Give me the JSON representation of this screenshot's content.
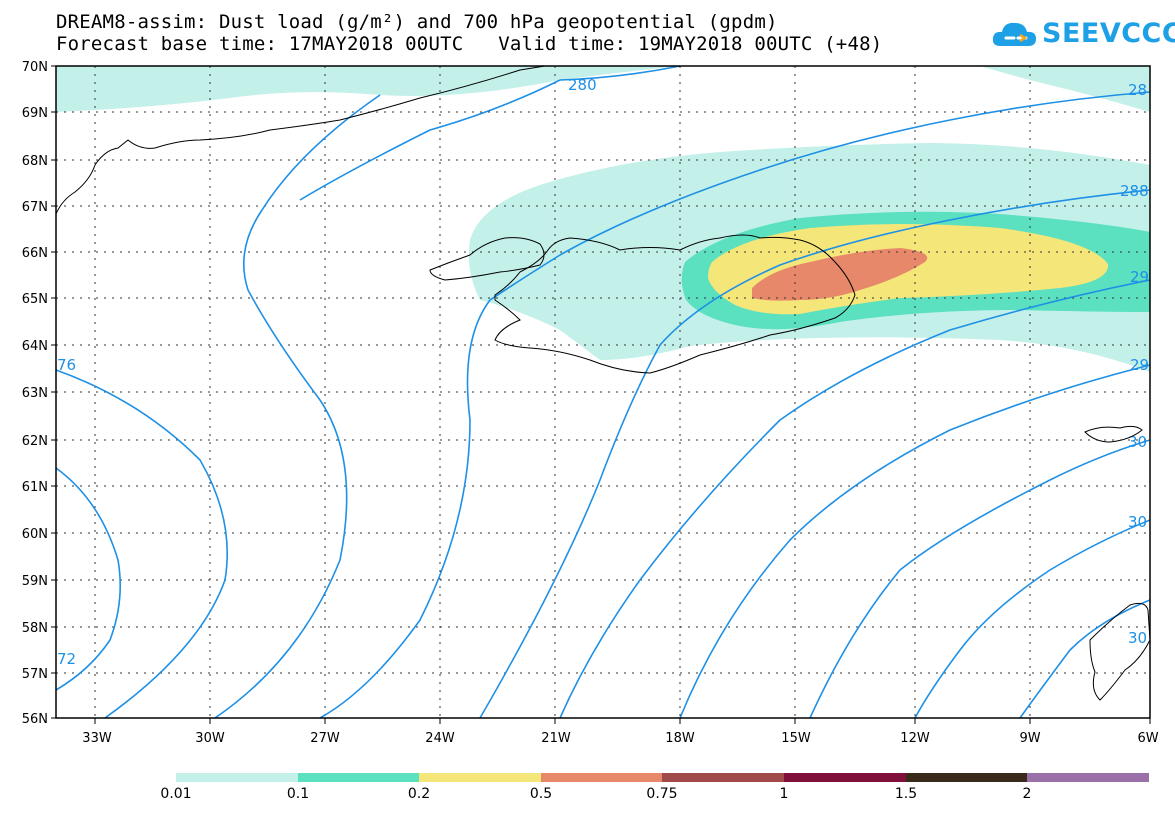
{
  "title": {
    "line1": "DREAM8-assim: Dust load (g/m²) and 700 hPa geopotential (gpdm)",
    "line2": "Forecast base time: 17MAY2018 00UTC   Valid time: 19MAY2018 00UTC (+48)"
  },
  "logo": {
    "text": "SEEVCCC",
    "icon": "cloud-icon",
    "color": "#1ea0e6"
  },
  "map": {
    "lat_labels": [
      "70N",
      "69N",
      "68N",
      "67N",
      "66N",
      "65N",
      "64N",
      "63N",
      "62N",
      "61N",
      "60N",
      "59N",
      "58N",
      "57N",
      "56N"
    ],
    "lon_labels": [
      "33W",
      "30W",
      "27W",
      "24W",
      "21W",
      "18W",
      "15W",
      "12W",
      "9W",
      "6W"
    ],
    "contour_labels": [
      "280",
      "28",
      "288",
      "29",
      "29",
      "30",
      "30",
      "30",
      "76",
      "72"
    ],
    "contour_color": "#1e90e6",
    "coast_color": "#000000"
  },
  "legend": {
    "colors": [
      "#c4f0ea",
      "#5be0c0",
      "#f5e67a",
      "#e8886a",
      "#a04a4a",
      "#80103a",
      "#3a2a1a",
      "#9a70a8"
    ],
    "labels": [
      "0.01",
      "0.1",
      "0.2",
      "0.5",
      "0.75",
      "1",
      "1.5",
      "2"
    ]
  }
}
